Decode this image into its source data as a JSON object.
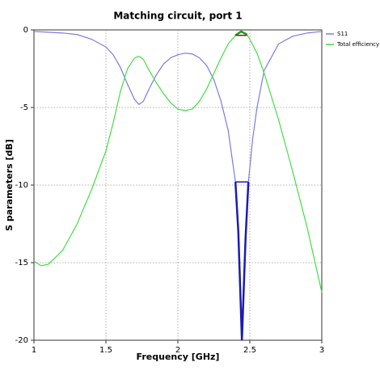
{
  "chart_data": {
    "type": "line",
    "title": "Matching circuit, port 1",
    "x_label": "Frequency [GHz]",
    "y_label": "S parameters [dB]",
    "xlim": [
      1,
      3
    ],
    "ylim": [
      -20,
      0
    ],
    "xticks": [
      1,
      1.5,
      2,
      2.5,
      3
    ],
    "yticks": [
      0,
      -5,
      -10,
      -15,
      -20
    ],
    "grid": true,
    "legend": "right",
    "highlight": {
      "xlim": [
        2.4,
        2.49
      ]
    },
    "series": [
      {
        "name": "S11",
        "color": "#7b7be0",
        "highlight_color": "#1c1cb0",
        "x": [
          1,
          1.1,
          1.2,
          1.3,
          1.4,
          1.5,
          1.55,
          1.6,
          1.65,
          1.7,
          1.73,
          1.76,
          1.8,
          1.85,
          1.9,
          1.95,
          2,
          2.05,
          2.1,
          2.15,
          2.2,
          2.25,
          2.3,
          2.35,
          2.4,
          2.42,
          2.445,
          2.47,
          2.49,
          2.52,
          2.55,
          2.6,
          2.7,
          2.8,
          2.9,
          3
        ],
        "values": [
          -0.1,
          -0.15,
          -0.2,
          -0.3,
          -0.6,
          -1.1,
          -1.6,
          -2.4,
          -3.5,
          -4.5,
          -4.8,
          -4.6,
          -3.8,
          -2.9,
          -2.2,
          -1.8,
          -1.6,
          -1.5,
          -1.55,
          -1.8,
          -2.3,
          -3.2,
          -4.6,
          -6.5,
          -9.8,
          -13,
          -20,
          -13.5,
          -9.8,
          -7,
          -5,
          -2.6,
          -0.9,
          -0.4,
          -0.2,
          -0.1
        ]
      },
      {
        "name": "Total efficiency",
        "color": "#44dd44",
        "highlight_color": "#1f9a1f",
        "x": [
          1,
          1.05,
          1.1,
          1.2,
          1.3,
          1.4,
          1.5,
          1.55,
          1.6,
          1.65,
          1.7,
          1.73,
          1.76,
          1.8,
          1.85,
          1.9,
          1.95,
          2,
          2.05,
          2.1,
          2.15,
          2.2,
          2.25,
          2.3,
          2.35,
          2.4,
          2.44,
          2.48,
          2.5,
          2.55,
          2.6,
          2.7,
          2.8,
          2.9,
          3
        ],
        "values": [
          -14.9,
          -15.2,
          -15.1,
          -14.2,
          -12.5,
          -10.3,
          -7.8,
          -6,
          -4,
          -2.5,
          -1.8,
          -1.7,
          -1.9,
          -2.6,
          -3.4,
          -4.1,
          -4.7,
          -5.1,
          -5.2,
          -5.1,
          -4.6,
          -3.8,
          -2.8,
          -1.8,
          -0.9,
          -0.35,
          -0.1,
          -0.3,
          -0.6,
          -1.5,
          -2.8,
          -5.8,
          -9.2,
          -12.8,
          -16.9
        ]
      }
    ]
  }
}
